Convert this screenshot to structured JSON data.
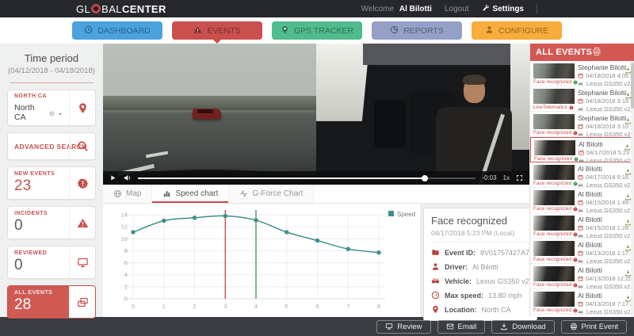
{
  "topbar": {
    "logo_part1": "GL",
    "logo_part2": "BAL",
    "logo_part3": "CENTER",
    "welcome": "Welcome",
    "user": "Al Bilotti",
    "logout": "Logout",
    "settings": "Settings",
    "settings_icon": "wrench"
  },
  "nav": {
    "items": [
      {
        "label": "DASHBOARD",
        "icon": "clock",
        "color": "#4aa3df",
        "active": false
      },
      {
        "label": "EVENTS",
        "icon": "warning-triangle",
        "color": "#c9504c",
        "active": true
      },
      {
        "label": "GPS TRACKER",
        "icon": "map-marker",
        "color": "#50bb8c",
        "active": false
      },
      {
        "label": "REPORTS",
        "icon": "pie",
        "color": "#95a0c6",
        "active": false
      },
      {
        "label": "CONFIGURE",
        "icon": "person",
        "color": "#f8ac3b",
        "active": false
      }
    ]
  },
  "sidebar": {
    "time_period": {
      "title": "Time period",
      "range": "(04/12/2018 - 04/18/2018)"
    },
    "region": {
      "label": "NORTH CA",
      "value": "North CA",
      "icon": "map-marker",
      "clear_icon": "circle-x",
      "caret_icon": "caret-down"
    },
    "advanced_search": {
      "label": "ADVANCED SEARCH",
      "icon": "search"
    },
    "counters": [
      {
        "label": "NEW EVENTS",
        "count": "23",
        "icon": "alert-badge",
        "count_color": "red",
        "active": false
      },
      {
        "label": "INCIDENTS",
        "count": "0",
        "icon": "warning-triangle",
        "count_color": "gray",
        "active": false
      },
      {
        "label": "REVIEWED",
        "count": "0",
        "icon": "monitor",
        "count_color": "gray",
        "active": false
      },
      {
        "label": "ALL EVENTS",
        "count": "28",
        "icon": "folders",
        "count_color": "white",
        "active": true
      }
    ]
  },
  "video": {
    "time_remaining": "-0:03",
    "playback_rate": "1x",
    "progress_pct": 85,
    "play_icon": "play",
    "volume_icon": "speaker",
    "fullscreen_icon": "fullscreen"
  },
  "tabs": [
    {
      "label": "Map",
      "icon": "globe",
      "active": false
    },
    {
      "label": "Speed chart",
      "icon": "bar-chart",
      "active": true
    },
    {
      "label": "G-Force Chart",
      "icon": "pulse",
      "active": false
    }
  ],
  "chart_data": {
    "type": "line",
    "title": "",
    "xlabel": "",
    "ylabel": "",
    "x": [
      0,
      1,
      2,
      3,
      4,
      5,
      6,
      7,
      8
    ],
    "series": [
      {
        "name": "Speed",
        "color": "#3f918a",
        "values": [
          11.1,
          13.0,
          13.5,
          13.8,
          13.1,
          11.1,
          9.7,
          8.3,
          7.7
        ]
      }
    ],
    "markers": [
      {
        "x": 3,
        "color": "#c0392b",
        "meaning": "event marker"
      },
      {
        "x": 4,
        "color": "#2e8b36",
        "meaning": "playhead marker"
      }
    ],
    "ylim": [
      0,
      14
    ],
    "yticks": [
      0,
      2,
      4,
      6,
      8,
      10,
      12,
      14
    ],
    "xticks": [
      0,
      1,
      2,
      3,
      4,
      5,
      6,
      7,
      8
    ],
    "grid": true,
    "legend_position": "top-right"
  },
  "details": {
    "title": "Face recognized",
    "datetime": "04/17/2018 5:23 PM (Local)",
    "rows": [
      {
        "icon": "folder",
        "label": "Event ID",
        "value": "8V01757427A7"
      },
      {
        "icon": "person",
        "label": "Driver",
        "value": "Al Bilotti"
      },
      {
        "icon": "car",
        "label": "Vehicle",
        "value": "Lexus GS350 v2"
      },
      {
        "icon": "speedometer",
        "label": "Max speed",
        "value": "13.80 mph"
      },
      {
        "icon": "map-marker",
        "label": "Location",
        "value": "North CA"
      }
    ]
  },
  "events_panel": {
    "title": "ALL EVENTS",
    "header_icon": "printer",
    "date_icon": "calendar",
    "vehicle_icon": "car",
    "download_icon": "download",
    "tag_icon": "alert-dot",
    "items": [
      {
        "name": "Stephanie Bilotti",
        "date": "04/18/2018 4:05 PM",
        "vehicle": "Lexus GS350 v2",
        "tag": "Face recognized",
        "tag_color": "green",
        "selected": false
      },
      {
        "name": "Stephanie Bilotti",
        "date": "04/18/2018 3:16 PM",
        "vehicle": "Lexus GS350 v2",
        "tag": "LiveTelematics",
        "tag_color": "red",
        "selected": false
      },
      {
        "name": "Stephanie Bilotti",
        "date": "04/18/2018 3:10 PM",
        "vehicle": "Lexus GS350 v2",
        "tag": "Face recognized",
        "tag_color": "red",
        "selected": false
      },
      {
        "name": "Al Bilotti",
        "date": "04/17/2018 5:23 PM",
        "vehicle": "Lexus GS350 v2",
        "tag": "Face recognized",
        "tag_color": "green",
        "selected": true
      },
      {
        "name": "Al Bilotti",
        "date": "04/17/2018 5:18 PM",
        "vehicle": "Lexus GS350 v2",
        "tag": "Face recognized",
        "tag_color": "green",
        "selected": false
      },
      {
        "name": "Al Bilotti",
        "date": "04/15/2018 1:49 PM",
        "vehicle": "Lexus GS350 v2",
        "tag": "Face recognized",
        "tag_color": "red",
        "selected": false
      },
      {
        "name": "Al Bilotti",
        "date": "04/15/2018 1:28 PM",
        "vehicle": "Lexus GS350 v2",
        "tag": "Face recognized",
        "tag_color": "red",
        "selected": false
      },
      {
        "name": "Al Bilotti",
        "date": "04/13/2018 1:17 PM",
        "vehicle": "Lexus GS350 v2",
        "tag": "Face recognized",
        "tag_color": "red",
        "selected": false
      },
      {
        "name": "Al Bilotti",
        "date": "04/13/2018 12:29 PM",
        "vehicle": "Lexus GS350 v2",
        "tag": "Face recognized",
        "tag_color": "red",
        "selected": false
      },
      {
        "name": "Al Bilotti",
        "date": "04/13/2018 7:17 AM",
        "vehicle": "Lexus GS350 v2",
        "tag": "Face recognized",
        "tag_color": "red",
        "selected": false
      },
      {
        "name": "Al Bilotti",
        "date": "",
        "vehicle": "",
        "tag": "",
        "tag_color": "",
        "selected": false
      }
    ]
  },
  "footer": {
    "buttons": [
      {
        "label": "Review",
        "icon": "monitor"
      },
      {
        "label": "Email",
        "icon": "envelope"
      },
      {
        "label": "Download",
        "icon": "download"
      },
      {
        "label": "Print Event",
        "icon": "printer"
      }
    ]
  }
}
